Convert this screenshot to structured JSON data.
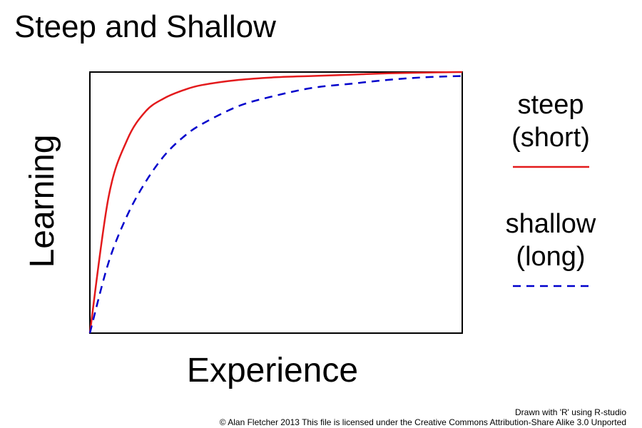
{
  "chart_data": {
    "type": "line",
    "title": "Steep and Shallow",
    "xlabel": "Experience",
    "ylabel": "Learning",
    "xlim": [
      0,
      1
    ],
    "ylim": [
      0,
      1
    ],
    "grid": false,
    "legend_placement": "right",
    "series": [
      {
        "name_lines": [
          "steep",
          "(short)"
        ],
        "color": "#e31a1c",
        "style": "solid",
        "x": [
          0,
          0.05,
          0.1,
          0.15,
          0.2,
          0.25,
          0.3,
          0.4,
          0.5,
          0.6,
          0.7,
          0.8,
          0.9,
          1.0
        ],
        "y": [
          0,
          0.52,
          0.74,
          0.85,
          0.9,
          0.93,
          0.95,
          0.97,
          0.98,
          0.985,
          0.99,
          0.995,
          0.998,
          1.0
        ]
      },
      {
        "name_lines": [
          "shallow",
          "(long)"
        ],
        "color": "#0000cc",
        "style": "dashed",
        "x": [
          0,
          0.05,
          0.1,
          0.15,
          0.2,
          0.25,
          0.3,
          0.4,
          0.5,
          0.6,
          0.7,
          0.8,
          0.9,
          1.0
        ],
        "y": [
          0,
          0.27,
          0.45,
          0.58,
          0.68,
          0.75,
          0.8,
          0.87,
          0.91,
          0.94,
          0.955,
          0.97,
          0.98,
          0.985
        ]
      }
    ]
  },
  "credits": {
    "line1": "Drawn with 'R' using R-studio",
    "line2": "© Alan Fletcher 2013 This file is licensed under the Creative Commons Attribution-Share Alike 3.0 Unported"
  }
}
